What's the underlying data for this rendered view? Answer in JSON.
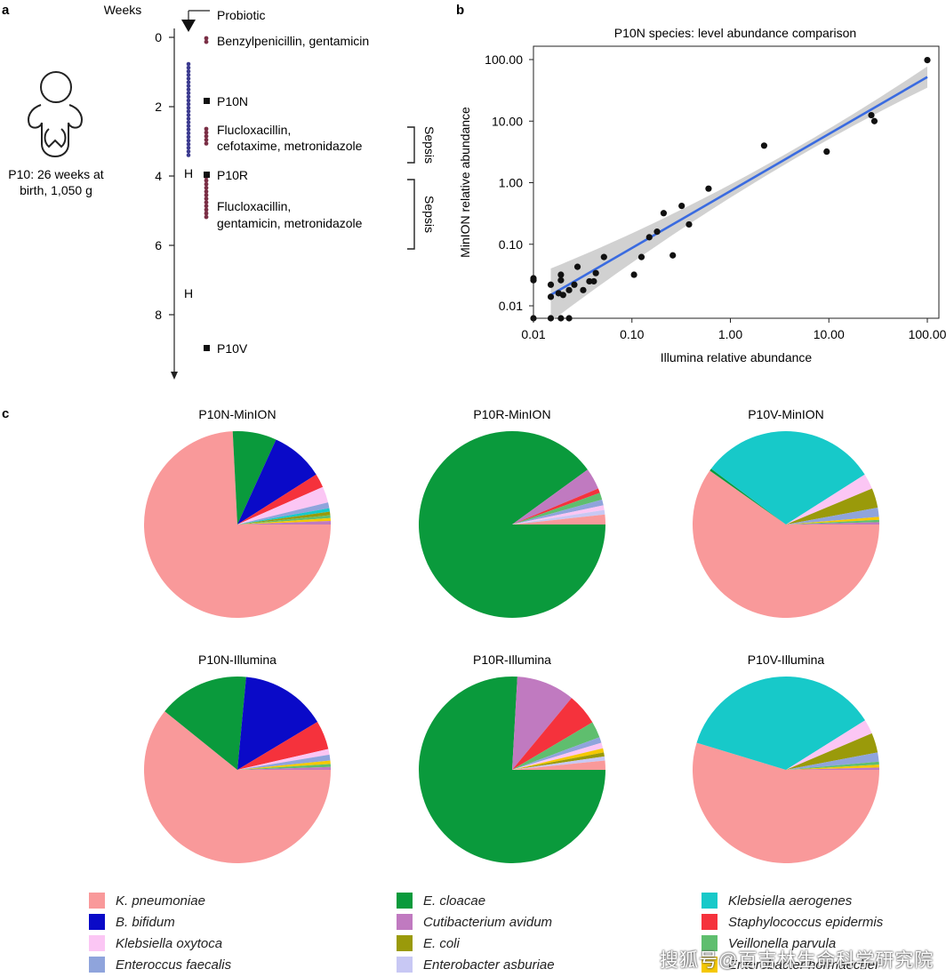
{
  "panel_a": {
    "label": "a",
    "axis_title": "Weeks",
    "probiotic_label": "Probiotic",
    "patient_caption_line1": "P10: 26 weeks at",
    "patient_caption_line2": "birth, 1,050 g",
    "ticks": [
      "0",
      "2",
      "4",
      "6",
      "8"
    ],
    "hospital_marks": [
      "H",
      "H"
    ],
    "samples": [
      "P10N",
      "P10R",
      "P10V"
    ],
    "antibiotics": [
      {
        "line1": "Benzylpenicillin, gentamicin",
        "line2": ""
      },
      {
        "line1": "Flucloxacillin,",
        "line2": "cefotaxime, metronidazole"
      },
      {
        "line1": "Flucloxacillin,",
        "line2": "gentamicin, metronidazole"
      }
    ],
    "sepsis_label": "Sepsis",
    "colors": {
      "probiotic_dot": "#3b3a8f",
      "antibiotic_dot": "#7a2e45"
    }
  },
  "panel_b": {
    "label": "b"
  },
  "panel_c": {
    "label": "c"
  },
  "legend": [
    {
      "name": "K. pneumoniae",
      "color": "#f9999a"
    },
    {
      "name": "E. cloacae",
      "color": "#0a9a3c"
    },
    {
      "name": "Klebsiella aerogenes",
      "color": "#17c9c9"
    },
    {
      "name": "B. bifidum",
      "color": "#0a0ac8"
    },
    {
      "name": "Cutibacterium avidum",
      "color": "#c07ac0"
    },
    {
      "name": "Staphylococcus epidermis",
      "color": "#f5323c"
    },
    {
      "name": "Klebsiella oxytoca",
      "color": "#fbc6f4"
    },
    {
      "name": "E. coli",
      "color": "#9a9a0a"
    },
    {
      "name": "Veillonella parvula",
      "color": "#5fbe6e"
    },
    {
      "name": "Enteroccus faecalis",
      "color": "#8fa4dc"
    },
    {
      "name": "Enterobacter asburiae",
      "color": "#c8c8f4"
    },
    {
      "name": "Enterobacter hormaechei",
      "color": "#f5c800"
    }
  ],
  "watermark": "搜狐号@百吉林生命科学研究院",
  "chart_data": [
    {
      "type": "scatter",
      "title": "P10N species: level abundance comparison",
      "xlabel": "Illumina relative abundance",
      "ylabel": "MinION relative abundance",
      "xscale": "log",
      "yscale": "log",
      "xlim": [
        0.01,
        100
      ],
      "ylim": [
        0.006,
        100
      ],
      "xticks": [
        "0.01",
        "0.10",
        "1.00",
        "10.00",
        "100.00"
      ],
      "yticks": [
        "0.01",
        "0.10",
        "1.00",
        "10.00",
        "100.00"
      ],
      "fit_line": {
        "x": [
          0.015,
          100
        ],
        "y": [
          0.015,
          52
        ],
        "color": "#3a6be0"
      },
      "points": [
        [
          0.01,
          0.028
        ],
        [
          0.01,
          0.026
        ],
        [
          0.01,
          0.006
        ],
        [
          0.015,
          0.022
        ],
        [
          0.015,
          0.014
        ],
        [
          0.015,
          0.006
        ],
        [
          0.018,
          0.016
        ],
        [
          0.019,
          0.032
        ],
        [
          0.019,
          0.026
        ],
        [
          0.019,
          0.006
        ],
        [
          0.02,
          0.015
        ],
        [
          0.023,
          0.018
        ],
        [
          0.023,
          0.006
        ],
        [
          0.026,
          0.022
        ],
        [
          0.028,
          0.043
        ],
        [
          0.032,
          0.018
        ],
        [
          0.037,
          0.025
        ],
        [
          0.041,
          0.025
        ],
        [
          0.043,
          0.034
        ],
        [
          0.052,
          0.062
        ],
        [
          0.105,
          0.032
        ],
        [
          0.125,
          0.062
        ],
        [
          0.15,
          0.13
        ],
        [
          0.18,
          0.16
        ],
        [
          0.21,
          0.32
        ],
        [
          0.26,
          0.066
        ],
        [
          0.32,
          0.42
        ],
        [
          0.38,
          0.21
        ],
        [
          0.6,
          0.8
        ],
        [
          2.2,
          4.0
        ],
        [
          9.5,
          3.2
        ],
        [
          27,
          12.5
        ],
        [
          29,
          10.0
        ],
        [
          100,
          98
        ]
      ]
    },
    {
      "type": "pie",
      "title": "P10N-MinION",
      "slices": [
        [
          "K. pneumoniae",
          74.2
        ],
        [
          "E. cloacae",
          7.6
        ],
        [
          "B. bifidum",
          9.2
        ],
        [
          "Staphylococcus epidermis",
          2.4
        ],
        [
          "Klebsiella oxytoca",
          2.8
        ],
        [
          "Enteroccus faecalis",
          1.0
        ],
        [
          "Klebsiella aerogenes",
          0.6
        ],
        [
          "E. coli",
          0.6
        ],
        [
          "Veillonella parvula",
          0.5
        ],
        [
          "Enterobacter hormaechei",
          0.5
        ],
        [
          "Cutibacterium avidum",
          0.6
        ]
      ]
    },
    {
      "type": "pie",
      "title": "P10R-MinION",
      "slices": [
        [
          "E. cloacae",
          90.0
        ],
        [
          "Cutibacterium avidum",
          3.7
        ],
        [
          "Staphylococcus epidermis",
          0.8
        ],
        [
          "Veillonella parvula",
          1.2
        ],
        [
          "Enteroccus faecalis",
          1.0
        ],
        [
          "Klebsiella oxytoca",
          0.8
        ],
        [
          "Enterobacter asburiae",
          0.8
        ],
        [
          "K. pneumoniae",
          1.7
        ]
      ]
    },
    {
      "type": "pie",
      "title": "P10V-MinION",
      "slices": [
        [
          "K. pneumoniae",
          59.8
        ],
        [
          "E. cloacae",
          0.4
        ],
        [
          "Klebsiella aerogenes",
          30.8
        ],
        [
          "Klebsiella oxytoca",
          2.7
        ],
        [
          "E. coli",
          3.4
        ],
        [
          "Enteroccus faecalis",
          1.6
        ],
        [
          "Enterobacter hormaechei",
          0.5
        ],
        [
          "Veillonella parvula",
          0.4
        ],
        [
          "Cutibacterium avidum",
          0.4
        ]
      ]
    },
    {
      "type": "pie",
      "title": "P10N-Illumina",
      "slices": [
        [
          "K. pneumoniae",
          60.8
        ],
        [
          "E. cloacae",
          15.7
        ],
        [
          "B. bifidum",
          14.9
        ],
        [
          "Staphylococcus epidermis",
          5.0
        ],
        [
          "Klebsiella oxytoca",
          1.0
        ],
        [
          "Enteroccus faecalis",
          1.0
        ],
        [
          "Enterobacter hormaechei",
          0.6
        ],
        [
          "Veillonella parvula",
          0.5
        ],
        [
          "Cutibacterium avidum",
          0.5
        ]
      ]
    },
    {
      "type": "pie",
      "title": "P10R-Illumina",
      "slices": [
        [
          "E. cloacae",
          75.9
        ],
        [
          "Cutibacterium avidum",
          10.1
        ],
        [
          "Staphylococcus epidermis",
          5.5
        ],
        [
          "Veillonella parvula",
          2.8
        ],
        [
          "Enteroccus faecalis",
          1.0
        ],
        [
          "Klebsiella oxytoca",
          1.0
        ],
        [
          "Enterobacter hormaechei",
          0.7
        ],
        [
          "E. coli",
          0.7
        ],
        [
          "Enterobacter asburiae",
          0.7
        ],
        [
          "K. pneumoniae",
          1.6
        ]
      ]
    },
    {
      "type": "pie",
      "title": "P10V-Illumina",
      "slices": [
        [
          "K. pneumoniae",
          54.7
        ],
        [
          "Klebsiella aerogenes",
          36.4
        ],
        [
          "Klebsiella oxytoca",
          2.5
        ],
        [
          "E. coli",
          3.4
        ],
        [
          "Enteroccus faecalis",
          1.6
        ],
        [
          "Veillonella parvula",
          0.5
        ],
        [
          "Enterobacter hormaechei",
          0.5
        ],
        [
          "Cutibacterium avidum",
          0.4
        ]
      ]
    }
  ]
}
